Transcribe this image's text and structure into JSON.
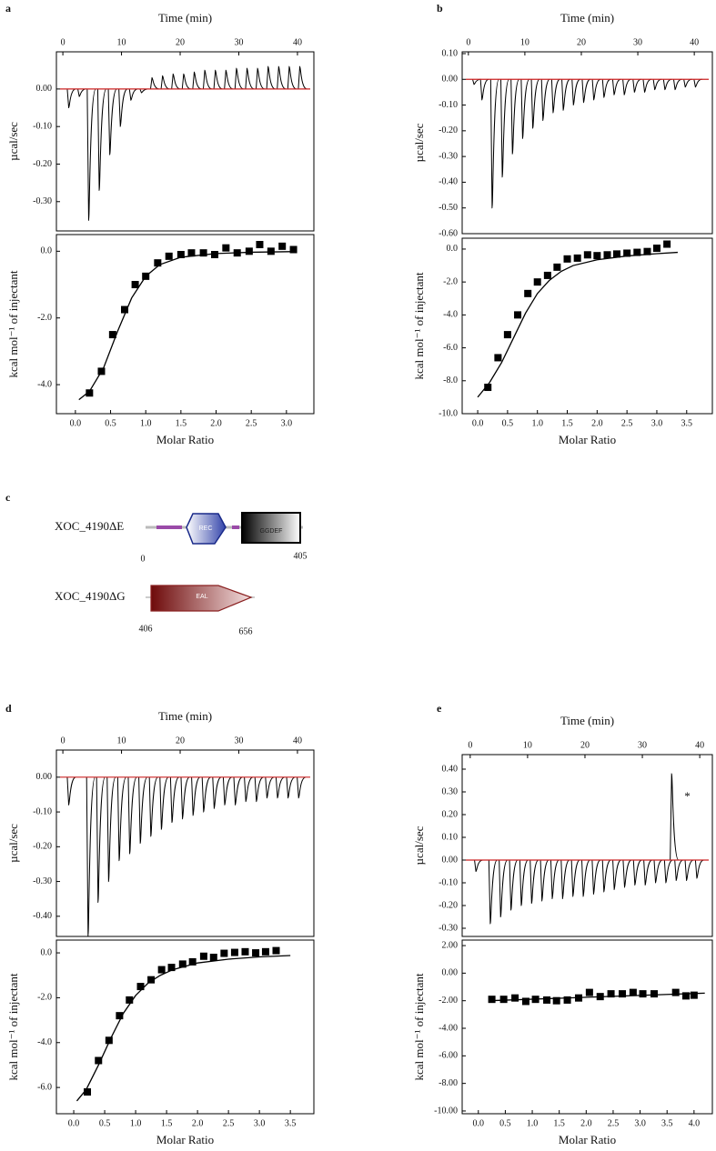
{
  "chart_data": [
    {
      "type": "itc_raw",
      "panel": "a",
      "xlabel": "Time (min)",
      "ylabel": "µcal/sec",
      "color": "#000000",
      "baseline_color": "#cc2222",
      "x": [
        1,
        2.8,
        4.4,
        6.2,
        8,
        9.8,
        11.6,
        13.4,
        15.2,
        17,
        18.8,
        20.6,
        22.4,
        24.2,
        26,
        27.8,
        29.6,
        31.4,
        33.2,
        35,
        36.8,
        38.6,
        40.4
      ],
      "values": [
        -0.05,
        -0.02,
        -0.35,
        -0.27,
        -0.175,
        -0.1,
        -0.03,
        -0.01,
        0.03,
        0.035,
        0.04,
        0.04,
        0.045,
        0.05,
        0.05,
        0.05,
        0.055,
        0.055,
        0.055,
        0.06,
        0.06,
        0.06,
        0.06
      ],
      "xlim": [
        -1.1,
        42.8
      ],
      "xticks": [
        0,
        10,
        20,
        30,
        40
      ],
      "ylim": [
        -0.378,
        0.099
      ],
      "yticks": [
        {
          "value": 0,
          "label": "0.00"
        },
        {
          "value": -0.1,
          "label": "-0.10"
        },
        {
          "value": -0.2,
          "label": "-0.20"
        },
        {
          "value": -0.3,
          "label": "-0.30"
        }
      ]
    },
    {
      "type": "itc_fit",
      "xlabel": "Molar Ratio",
      "ylabel": "kcal mol⁻¹ of injectant",
      "color": "#000000",
      "x": [
        0.2,
        0.37,
        0.53,
        0.7,
        0.85,
        1.0,
        1.17,
        1.33,
        1.5,
        1.65,
        1.82,
        1.98,
        2.14,
        2.3,
        2.47,
        2.62,
        2.78,
        2.94,
        3.1
      ],
      "values": [
        -4.25,
        -3.6,
        -2.5,
        -1.75,
        -1.0,
        -0.75,
        -0.35,
        -0.15,
        -0.1,
        -0.05,
        -0.05,
        -0.1,
        0.1,
        -0.05,
        0.0,
        0.2,
        0.0,
        0.15,
        0.05
      ],
      "fit_x": [
        0.05,
        0.2,
        0.4,
        0.6,
        0.8,
        1.0,
        1.2,
        1.5,
        2.0,
        2.5,
        3.15
      ],
      "fit_values": [
        -4.45,
        -4.2,
        -3.5,
        -2.4,
        -1.4,
        -0.75,
        -0.4,
        -0.18,
        -0.07,
        -0.03,
        -0.01
      ],
      "xlim": [
        -0.27,
        3.39
      ],
      "xticks": [
        {
          "value": 0,
          "label": "0.0"
        },
        {
          "value": 0.5,
          "label": "0.5"
        },
        {
          "value": 1,
          "label": "1.0"
        },
        {
          "value": 1.5,
          "label": "1.5"
        },
        {
          "value": 2,
          "label": "2.0"
        },
        {
          "value": 2.5,
          "label": "2.5"
        },
        {
          "value": 3,
          "label": "3.0"
        }
      ],
      "ylim": [
        -4.87,
        0.5
      ],
      "yticks": [
        {
          "value": 0,
          "label": "0.0"
        },
        {
          "value": -2,
          "label": "-2.0"
        },
        {
          "value": -4,
          "label": "-4.0"
        }
      ]
    },
    {
      "type": "itc_raw",
      "panel": "b",
      "xlabel": "Time (min)",
      "ylabel": "µcal/sec",
      "color": "#000000",
      "baseline_color": "#cc2222",
      "x": [
        1,
        2.4,
        4.2,
        6,
        7.8,
        9.6,
        11.4,
        13.2,
        15,
        16.8,
        18.6,
        20.4,
        22.2,
        24,
        25.8,
        27.6,
        29.4,
        31.2,
        33,
        34.8,
        36.6,
        38.4,
        40.2
      ],
      "values": [
        -0.02,
        -0.08,
        -0.5,
        -0.38,
        -0.29,
        -0.23,
        -0.19,
        -0.16,
        -0.13,
        -0.12,
        -0.1,
        -0.09,
        -0.08,
        -0.07,
        -0.06,
        -0.06,
        -0.05,
        -0.05,
        -0.04,
        -0.04,
        -0.04,
        -0.03,
        -0.03
      ],
      "xlim": [
        -1.1,
        43.2
      ],
      "xticks": [
        0,
        10,
        20,
        30,
        40
      ],
      "ylim": [
        -0.6,
        0.107
      ],
      "yticks": [
        {
          "value": 0.1,
          "label": "0.10"
        },
        {
          "value": 0,
          "label": "0.00"
        },
        {
          "value": -0.1,
          "label": "-0.10"
        },
        {
          "value": -0.2,
          "label": "-0.20"
        },
        {
          "value": -0.3,
          "label": "-0.30"
        },
        {
          "value": -0.4,
          "label": "-0.40"
        },
        {
          "value": -0.5,
          "label": "-0.50"
        },
        {
          "value": -0.6,
          "label": "-0.60"
        }
      ]
    },
    {
      "type": "itc_fit",
      "xlabel": "Molar Ratio",
      "ylabel": "kcal mol⁻¹ of injectant",
      "color": "#000000",
      "x": [
        0.17,
        0.34,
        0.5,
        0.67,
        0.84,
        1.0,
        1.17,
        1.33,
        1.5,
        1.67,
        1.84,
        2.0,
        2.17,
        2.33,
        2.5,
        2.67,
        2.84,
        3.0,
        3.17
      ],
      "values": [
        -8.4,
        -6.6,
        -5.2,
        -4.0,
        -2.7,
        -2.0,
        -1.6,
        -1.1,
        -0.6,
        -0.55,
        -0.35,
        -0.4,
        -0.35,
        -0.3,
        -0.25,
        -0.2,
        -0.15,
        0.05,
        0.3
      ],
      "fit_x": [
        0.0,
        0.2,
        0.4,
        0.6,
        0.8,
        1.0,
        1.2,
        1.4,
        1.6,
        2.0,
        2.5,
        3.0,
        3.35
      ],
      "fit_values": [
        -9.0,
        -8.1,
        -6.9,
        -5.4,
        -3.9,
        -2.7,
        -1.9,
        -1.35,
        -1.0,
        -0.65,
        -0.42,
        -0.28,
        -0.2
      ],
      "xlim": [
        -0.26,
        3.93
      ],
      "xticks": [
        {
          "value": 0,
          "label": "0.0"
        },
        {
          "value": 0.5,
          "label": "0.5"
        },
        {
          "value": 1,
          "label": "1.0"
        },
        {
          "value": 1.5,
          "label": "1.5"
        },
        {
          "value": 2,
          "label": "2.0"
        },
        {
          "value": 2.5,
          "label": "2.5"
        },
        {
          "value": 3,
          "label": "3.0"
        },
        {
          "value": 3.5,
          "label": "3.5"
        }
      ],
      "ylim": [
        -10,
        0.66
      ],
      "yticks": [
        {
          "value": 0,
          "label": "0.0"
        },
        {
          "value": -2,
          "label": "-2.0"
        },
        {
          "value": -4,
          "label": "-4.0"
        },
        {
          "value": -6,
          "label": "-6.0"
        },
        {
          "value": -8,
          "label": "-8.0"
        },
        {
          "value": -10,
          "label": "-10.0"
        }
      ]
    },
    {
      "type": "itc_raw",
      "panel": "d",
      "xlabel": "Time (min)",
      "ylabel": "µcal/sec",
      "color": "#000000",
      "baseline_color": "#cc2222",
      "x": [
        1,
        4.3,
        6,
        7.8,
        9.6,
        11.4,
        13.2,
        15,
        16.8,
        18.6,
        20.4,
        22.2,
        24,
        25.8,
        27.6,
        29.4,
        31.2,
        33,
        34.8,
        36.6,
        38.4,
        40.2
      ],
      "values": [
        -0.08,
        -0.46,
        -0.36,
        -0.3,
        -0.24,
        -0.22,
        -0.19,
        -0.17,
        -0.15,
        -0.13,
        -0.12,
        -0.11,
        -0.1,
        -0.09,
        -0.08,
        -0.08,
        -0.07,
        -0.07,
        -0.06,
        -0.06,
        -0.06,
        -0.06
      ],
      "xlim": [
        -1.1,
        42.8
      ],
      "xticks": [
        0,
        10,
        20,
        30,
        40
      ],
      "ylim": [
        -0.458,
        0.078
      ],
      "yticks": [
        {
          "value": 0,
          "label": "0.00"
        },
        {
          "value": -0.1,
          "label": "-0.10"
        },
        {
          "value": -0.2,
          "label": "-0.20"
        },
        {
          "value": -0.3,
          "label": "-0.30"
        },
        {
          "value": -0.4,
          "label": "-0.40"
        }
      ]
    },
    {
      "type": "itc_fit",
      "xlabel": "Molar Ratio",
      "ylabel": "kcal mol⁻¹ of injectant",
      "color": "#000000",
      "x": [
        0.22,
        0.4,
        0.57,
        0.74,
        0.9,
        1.08,
        1.25,
        1.42,
        1.58,
        1.76,
        1.92,
        2.1,
        2.26,
        2.43,
        2.6,
        2.77,
        2.94,
        3.1,
        3.27
      ],
      "values": [
        -6.2,
        -4.8,
        -3.9,
        -2.8,
        -2.1,
        -1.5,
        -1.2,
        -0.75,
        -0.65,
        -0.5,
        -0.4,
        -0.15,
        -0.2,
        -0.02,
        0.02,
        0.05,
        0.0,
        0.05,
        0.1
      ],
      "fit_x": [
        0.05,
        0.2,
        0.4,
        0.6,
        0.8,
        1.0,
        1.2,
        1.4,
        1.6,
        2.0,
        2.5,
        3.0,
        3.5
      ],
      "fit_values": [
        -6.6,
        -6.1,
        -5.0,
        -3.8,
        -2.7,
        -1.9,
        -1.35,
        -1.0,
        -0.75,
        -0.45,
        -0.28,
        -0.18,
        -0.12
      ],
      "xlim": [
        -0.28,
        3.88
      ],
      "xticks": [
        {
          "value": 0,
          "label": "0.0"
        },
        {
          "value": 0.5,
          "label": "0.5"
        },
        {
          "value": 1,
          "label": "1.0"
        },
        {
          "value": 1.5,
          "label": "1.5"
        },
        {
          "value": 2,
          "label": "2.0"
        },
        {
          "value": 2.5,
          "label": "2.5"
        },
        {
          "value": 3,
          "label": "3.0"
        },
        {
          "value": 3.5,
          "label": "3.5"
        }
      ],
      "ylim": [
        -7.17,
        0.57
      ],
      "yticks": [
        {
          "value": 0,
          "label": "0.0"
        },
        {
          "value": -2,
          "label": "-2.0"
        },
        {
          "value": -4,
          "label": "-4.0"
        },
        {
          "value": -6,
          "label": "-6.0"
        }
      ]
    },
    {
      "type": "itc_raw",
      "panel": "e",
      "xlabel": "Time (min)",
      "ylabel": "µcal/sec",
      "annotation": "*",
      "color": "#000000",
      "baseline_color": "#cc2222",
      "x": [
        1,
        3.5,
        5.3,
        7.1,
        8.9,
        10.7,
        12.5,
        14.3,
        16.1,
        17.9,
        19.7,
        21.5,
        23.3,
        25.1,
        26.9,
        28.7,
        30.5,
        32.3,
        34.1,
        35.1,
        35.9,
        37.7,
        39.5
      ],
      "values": [
        -0.05,
        -0.28,
        -0.25,
        -0.22,
        -0.2,
        -0.19,
        -0.18,
        -0.17,
        -0.17,
        -0.16,
        -0.16,
        -0.15,
        -0.14,
        -0.13,
        -0.12,
        -0.11,
        -0.11,
        -0.1,
        -0.1,
        0.38,
        -0.09,
        -0.09,
        -0.08
      ],
      "xlim": [
        -1.4,
        42.2
      ],
      "xticks": [
        0,
        10,
        20,
        30,
        40
      ],
      "ylim": [
        -0.336,
        0.464
      ],
      "yticks": [
        {
          "value": 0.4,
          "label": "0.40"
        },
        {
          "value": 0.3,
          "label": "0.30"
        },
        {
          "value": 0.2,
          "label": "0.20"
        },
        {
          "value": 0.1,
          "label": "0.10"
        },
        {
          "value": 0,
          "label": "0.00"
        },
        {
          "value": -0.1,
          "label": "-0.10"
        },
        {
          "value": -0.2,
          "label": "-0.20"
        },
        {
          "value": -0.3,
          "label": "-0.30"
        }
      ]
    },
    {
      "type": "itc_fit",
      "xlabel": "Molar Ratio",
      "ylabel": "kcal mol⁻¹ of injectant",
      "color": "#000000",
      "x": [
        0.25,
        0.47,
        0.68,
        0.88,
        1.06,
        1.27,
        1.45,
        1.65,
        1.86,
        2.06,
        2.26,
        2.46,
        2.67,
        2.87,
        3.05,
        3.26,
        3.66,
        3.85,
        4.0
      ],
      "values": [
        -1.9,
        -1.9,
        -1.8,
        -2.05,
        -1.9,
        -1.95,
        -2.0,
        -1.95,
        -1.8,
        -1.4,
        -1.7,
        -1.5,
        -1.5,
        -1.4,
        -1.5,
        -1.5,
        -1.4,
        -1.65,
        -1.6
      ],
      "fit_x": [
        0.2,
        4.2
      ],
      "fit_values": [
        -2.0,
        -1.45
      ],
      "xlim": [
        -0.3,
        4.34
      ],
      "xticks": [
        {
          "value": 0,
          "label": "0.0"
        },
        {
          "value": 0.5,
          "label": "0.5"
        },
        {
          "value": 1,
          "label": "1.0"
        },
        {
          "value": 1.5,
          "label": "1.5"
        },
        {
          "value": 2,
          "label": "2.0"
        },
        {
          "value": 2.5,
          "label": "2.5"
        },
        {
          "value": 3,
          "label": "3.0"
        },
        {
          "value": 3.5,
          "label": "3.5"
        },
        {
          "value": 4,
          "label": "4.0"
        }
      ],
      "ylim": [
        -10.2,
        2.4
      ],
      "yticks": [
        {
          "value": 2,
          "label": "2.00"
        },
        {
          "value": 0,
          "label": "0.00"
        },
        {
          "value": -2,
          "label": "-2.00"
        },
        {
          "value": -4,
          "label": "-4.00"
        },
        {
          "value": -6,
          "label": "-6.00"
        },
        {
          "value": -8,
          "label": "-8.00"
        },
        {
          "value": -10,
          "label": "-10.00"
        }
      ]
    }
  ],
  "diagram": {
    "panel": "c",
    "construct_e": {
      "name": "XOC_4190ΔE",
      "start": "0",
      "end": "405",
      "domain_1": "REC",
      "domain_2": "GGDEF"
    },
    "construct_g": {
      "name": "XOC_4190ΔG",
      "start": "406",
      "end": "656",
      "domain_1": "EAL"
    }
  }
}
